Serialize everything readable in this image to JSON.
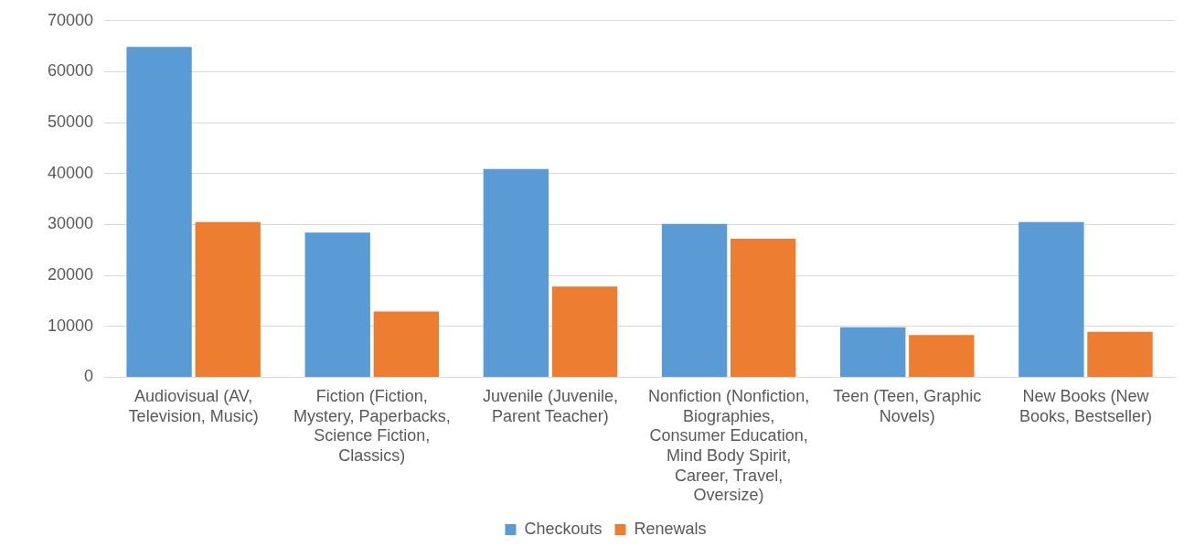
{
  "chart_data": {
    "type": "bar",
    "categories": [
      "Audiovisual (AV, Television, Music)",
      "Fiction (Fiction, Mystery, Paperbacks, Science Fiction, Classics)",
      "Juvenile (Juvenile, Parent Teacher)",
      "Nonfiction (Nonfiction, Biographies, Consumer Education, Mind Body Spirit, Career, Travel, Oversize)",
      "Teen (Teen, Graphic Novels)",
      "New Books (New Books, Bestseller)"
    ],
    "series": [
      {
        "name": "Checkouts",
        "color": "#5b9bd5",
        "values": [
          64900,
          28400,
          40900,
          30100,
          9800,
          30500
        ]
      },
      {
        "name": "Renewals",
        "color": "#ed7d31",
        "values": [
          30500,
          12900,
          17800,
          27200,
          8300,
          8900
        ]
      }
    ],
    "ylim": [
      0,
      70000
    ],
    "yticks": [
      0,
      10000,
      20000,
      30000,
      40000,
      50000,
      60000,
      70000
    ],
    "grid": "y",
    "legend": "bottom"
  }
}
